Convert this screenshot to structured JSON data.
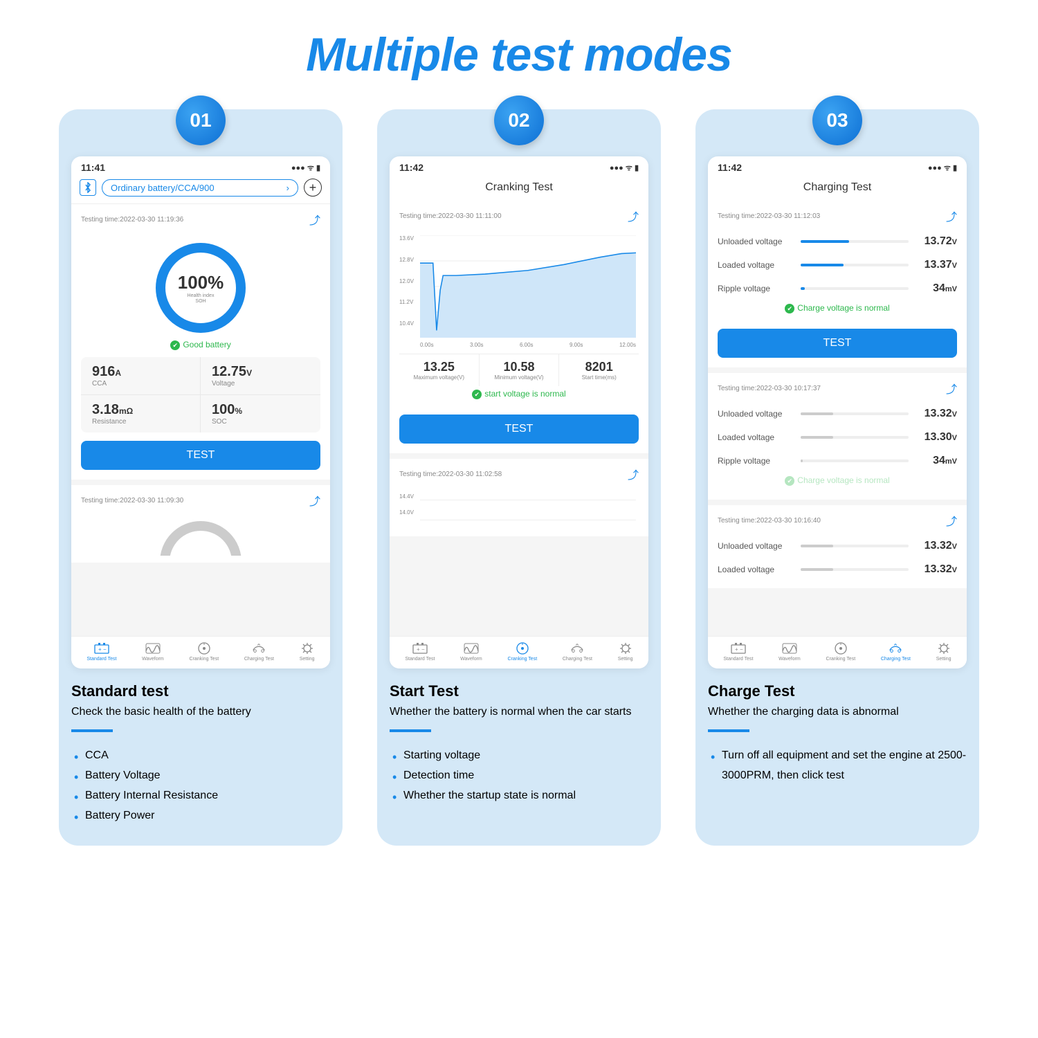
{
  "title": "Multiple test modes",
  "accent": "#1889e8",
  "panels": [
    {
      "badge": "01",
      "caption_title": "Standard test",
      "caption_desc": "Check the basic health of the battery",
      "bullets": [
        "CCA",
        "Battery Voltage",
        "Battery Internal Resistance",
        "Battery Power"
      ],
      "phone": {
        "time": "11:41",
        "pill": "Ordinary battery/CCA/900",
        "testing_time_1": "Testing time:2022-03-30 11:19:36",
        "gauge_value": "100%",
        "gauge_sub1": "Health index",
        "gauge_sub2": "SOH",
        "status": "Good battery",
        "metrics": [
          {
            "v": "916",
            "u": "A",
            "l": "CCA"
          },
          {
            "v": "12.75",
            "u": "V",
            "l": "Voltage"
          },
          {
            "v": "3.18",
            "u": "mΩ",
            "l": "Resistance"
          },
          {
            "v": "100",
            "u": "%",
            "l": "SOC"
          }
        ],
        "test_label": "TEST",
        "testing_time_2": "Testing time:2022-03-30 11:09:30",
        "tabs": [
          "Standard Test",
          "Waveform",
          "Cranking Test",
          "Charging Test",
          "Setting"
        ],
        "active_tab": 0
      }
    },
    {
      "badge": "02",
      "caption_title": "Start Test",
      "caption_desc": "Whether the battery is normal when the car starts",
      "bullets": [
        "Starting voltage",
        "Detection time",
        "Whether the startup state is normal"
      ],
      "phone": {
        "time": "11:42",
        "screen_title": "Cranking Test",
        "testing_time_1": "Testing time:2022-03-30 11:11:00",
        "y_ticks": [
          "13.6V",
          "12.8V",
          "12.0V",
          "11.2V",
          "10.4V"
        ],
        "x_ticks": [
          "0.00s",
          "3.00s",
          "6.00s",
          "9.00s",
          "12.00s"
        ],
        "chart_color": "#1889e8",
        "chart_fill": "#cfe6f9",
        "stats": [
          {
            "v": "13.25",
            "l": "Maximum voltage(V)"
          },
          {
            "v": "10.58",
            "l": "Minimum voltage(V)"
          },
          {
            "v": "8201",
            "l": "Start time(ms)"
          }
        ],
        "status": "start voltage is normal",
        "test_label": "TEST",
        "testing_time_2": "Testing time:2022-03-30 11:02:58",
        "y_ticks_2": [
          "14.4V",
          "14.0V"
        ],
        "tabs": [
          "Standard Test",
          "Waveform",
          "Cranking Test",
          "Charging Test",
          "Setting"
        ],
        "active_tab": 2
      }
    },
    {
      "badge": "03",
      "caption_title": "Charge Test",
      "caption_desc": "Whether the charging data is abnormal",
      "bullets": [
        "Turn off all equipment and set the engine at 2500-3000PRM, then click test"
      ],
      "phone": {
        "time": "11:42",
        "screen_title": "Charging Test",
        "testing_time_1": "Testing time:2022-03-30 11:12:03",
        "rows_1": [
          {
            "l": "Unloaded voltage",
            "v": "13.72",
            "u": "V",
            "pct": 45
          },
          {
            "l": "Loaded voltage",
            "v": "13.37",
            "u": "V",
            "pct": 40
          },
          {
            "l": "Ripple   voltage",
            "v": "34",
            "u": "mV",
            "pct": 4
          }
        ],
        "status_1": "Charge voltage is normal",
        "test_label": "TEST",
        "testing_time_2": "Testing time:2022-03-30 10:17:37",
        "rows_2": [
          {
            "l": "Unloaded voltage",
            "v": "13.32",
            "u": "V",
            "pct": 0
          },
          {
            "l": "Loaded voltage",
            "v": "13.30",
            "u": "V",
            "pct": 0
          },
          {
            "l": "Ripple   voltage",
            "v": "34",
            "u": "mV",
            "pct": 2
          }
        ],
        "status_2": "Charge voltage is normal",
        "testing_time_3": "Testing time:2022-03-30 10:16:40",
        "rows_3": [
          {
            "l": "Unloaded voltage",
            "v": "13.32",
            "u": "V",
            "pct": 0
          },
          {
            "l": "Loaded voltage",
            "v": "13.32",
            "u": "V",
            "pct": 0
          }
        ],
        "tabs": [
          "Standard Test",
          "Waveform",
          "Cranking Test",
          "Charging Test",
          "Setting"
        ],
        "active_tab": 3
      }
    }
  ]
}
